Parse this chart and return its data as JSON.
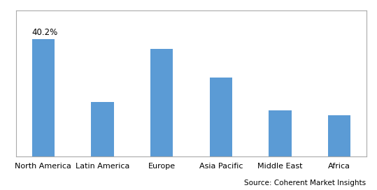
{
  "categories": [
    "North America",
    "Latin America",
    "Europe",
    "Asia Pacific",
    "Middle East",
    "Africa"
  ],
  "values": [
    40.2,
    18.5,
    36.8,
    27.0,
    15.8,
    14.0
  ],
  "bar_color": "#5B9BD5",
  "annotation_label": "40.2%",
  "annotation_index": 0,
  "ylim": [
    0,
    50
  ],
  "bar_width": 0.38,
  "background_color": "#ffffff",
  "source_text": "Source: Coherent Market Insights",
  "source_fontsize": 7.5,
  "tick_fontsize": 8,
  "annotation_fontsize": 8.5,
  "fig_width": 5.39,
  "fig_height": 2.72,
  "dpi": 100,
  "border_color": "#aaaaaa",
  "border_linewidth": 0.8
}
